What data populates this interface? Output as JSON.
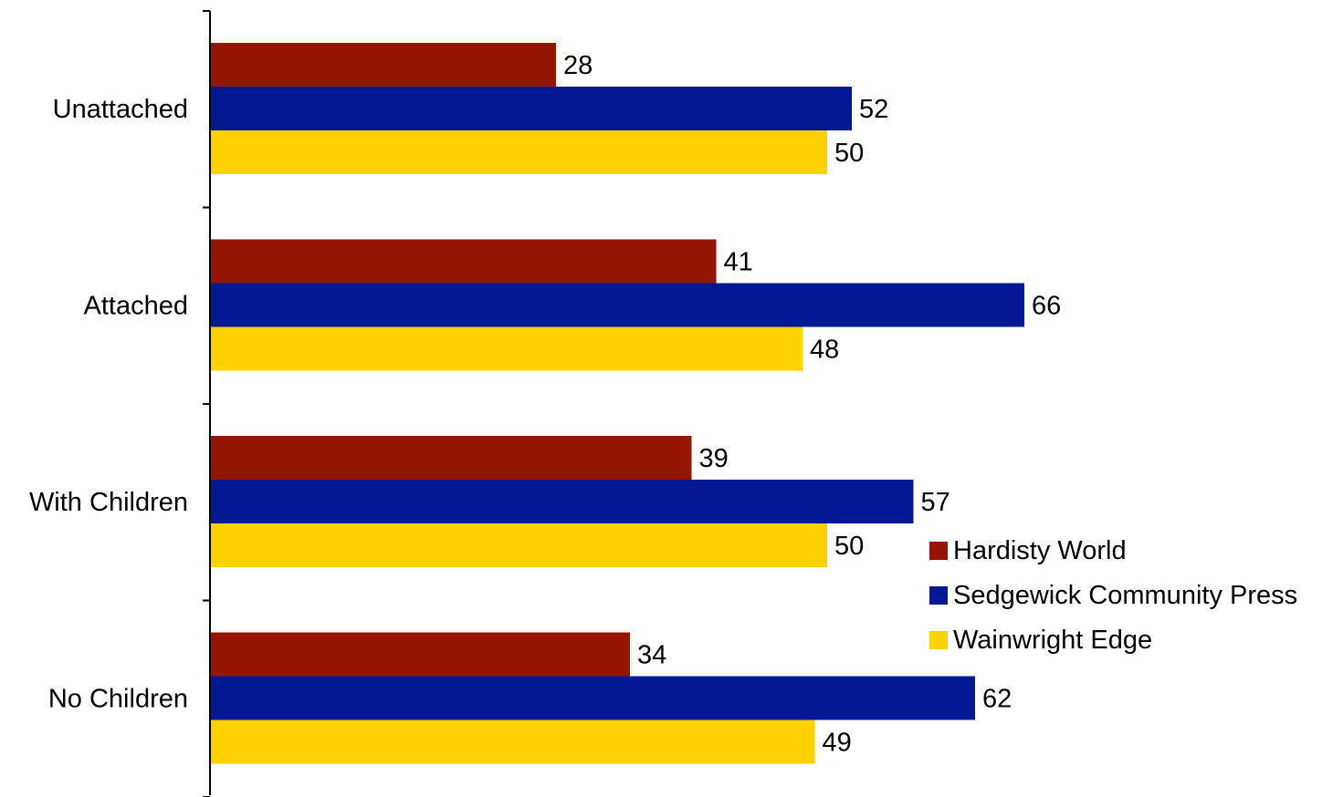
{
  "chart_data": {
    "type": "bar",
    "orientation": "horizontal",
    "categories": [
      "Unattached",
      "Attached",
      "With Children",
      "No Children"
    ],
    "series": [
      {
        "name": "Hardisty World",
        "color": "#941500",
        "values": [
          28,
          41,
          39,
          34
        ]
      },
      {
        "name": "Sedgewick Community Press",
        "color": "#031994",
        "values": [
          52,
          66,
          57,
          62
        ]
      },
      {
        "name": "Wainwright Edge",
        "color": "#ffd200",
        "values": [
          50,
          48,
          50,
          49
        ]
      }
    ],
    "xlim": [
      0,
      100
    ],
    "grid": false,
    "legend": {
      "position": "right"
    }
  }
}
